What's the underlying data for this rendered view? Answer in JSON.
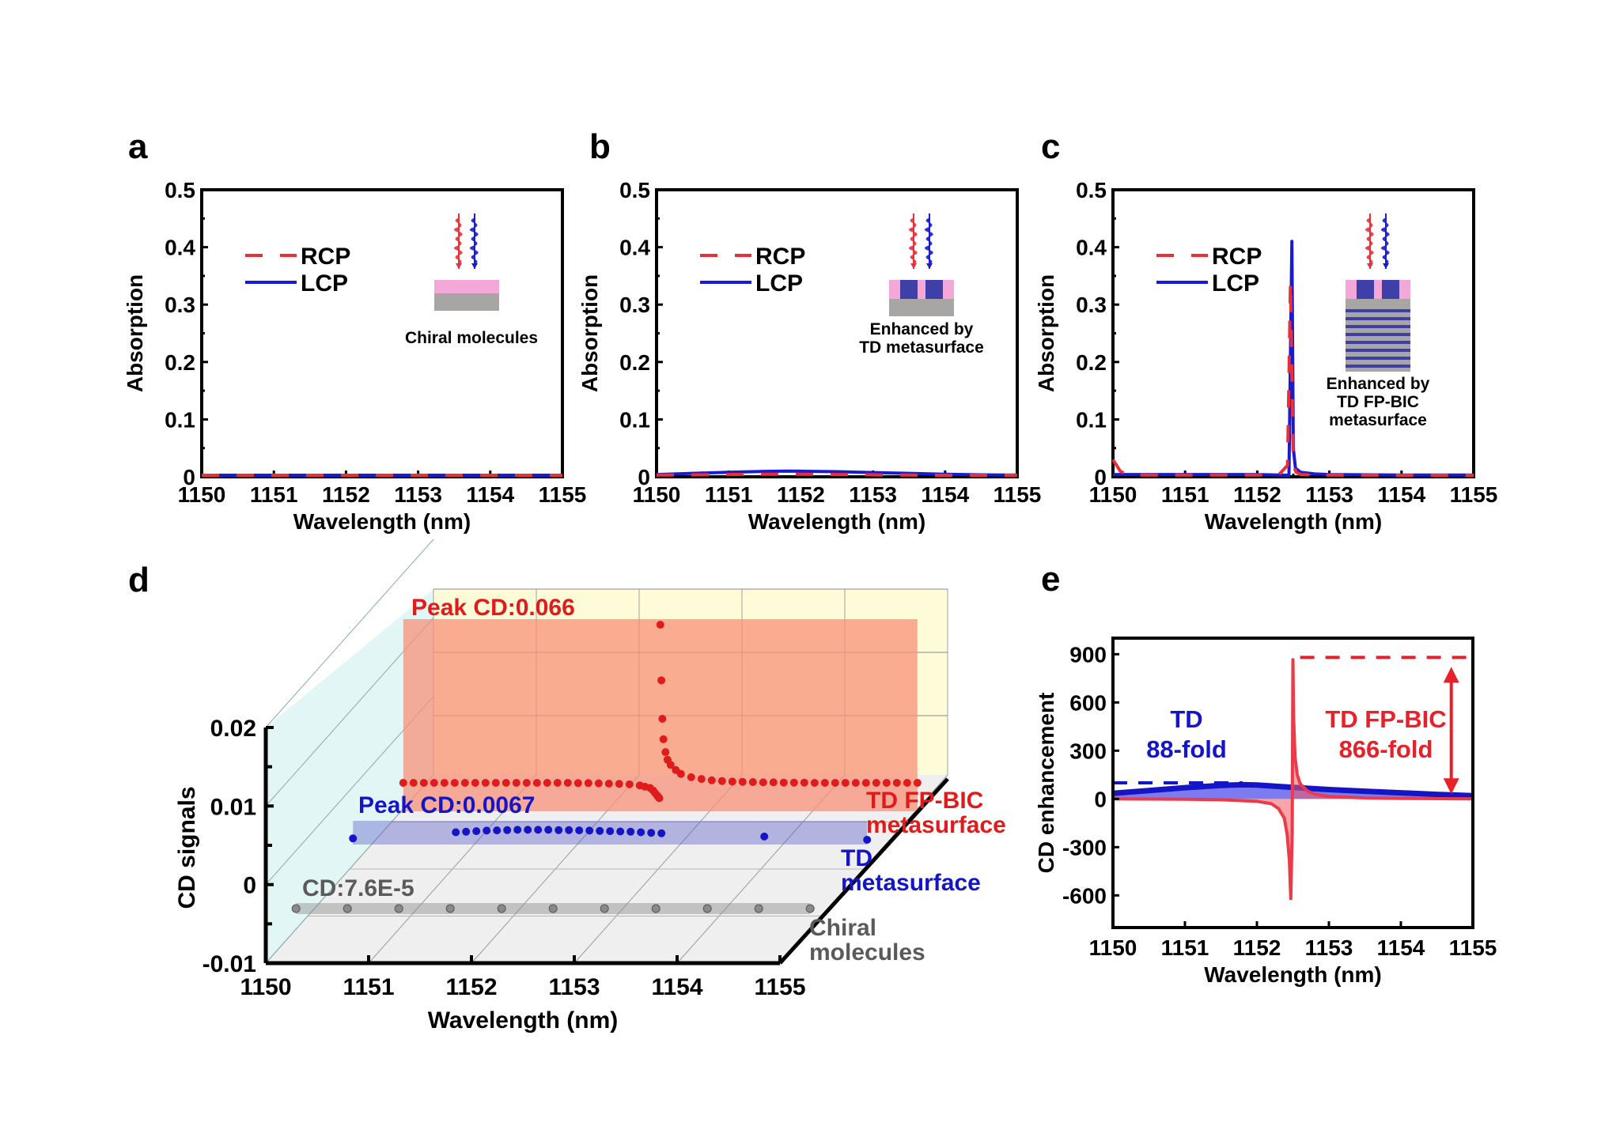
{
  "colors": {
    "rcp": "#e8303a",
    "lcp": "#1a1ad0",
    "axis": "#000000",
    "fpbic": "#e01b1b",
    "td": "#1515c8",
    "chiral": "#5a5a5a",
    "pink": "#f4a8d8",
    "substrate": "#a8a6a4",
    "meta_block": "#3f3fa8"
  },
  "chart_data": [
    {
      "id": "a",
      "type": "line",
      "panel_label": "a",
      "xlabel": "Wavelength (nm)",
      "ylabel": "Absorption",
      "xlim": [
        1150,
        1155
      ],
      "ylim": [
        0,
        0.5
      ],
      "xticks": [
        "1150",
        "1151",
        "1152",
        "1153",
        "1154",
        "1155"
      ],
      "yticks": [
        "0",
        "0.1",
        "0.2",
        "0.3",
        "0.4",
        "0.5"
      ],
      "legend": [
        "RCP",
        "LCP"
      ],
      "legend_position": "top-left",
      "inset_caption": [
        "Chiral molecules"
      ],
      "inset_type": "chiral",
      "series": [
        {
          "name": "RCP",
          "style": "dashed",
          "x": [
            1150,
            1151,
            1152,
            1153,
            1154,
            1155
          ],
          "y": [
            0.0005,
            0.0005,
            0.0005,
            0.0005,
            0.0005,
            0.0005
          ]
        },
        {
          "name": "LCP",
          "style": "solid",
          "x": [
            1150,
            1151,
            1152,
            1153,
            1154,
            1155
          ],
          "y": [
            0.0005,
            0.0005,
            0.0005,
            0.0005,
            0.0005,
            0.0005
          ]
        }
      ]
    },
    {
      "id": "b",
      "type": "line",
      "panel_label": "b",
      "xlabel": "Wavelength (nm)",
      "ylabel": "Absorption",
      "xlim": [
        1150,
        1155
      ],
      "ylim": [
        0,
        0.5
      ],
      "xticks": [
        "1150",
        "1151",
        "1152",
        "1153",
        "1154",
        "1155"
      ],
      "yticks": [
        "0",
        "0.1",
        "0.2",
        "0.3",
        "0.4",
        "0.5"
      ],
      "legend": [
        "RCP",
        "LCP"
      ],
      "legend_position": "top-left",
      "inset_caption": [
        "Enhanced by",
        "TD metasurface"
      ],
      "inset_type": "td",
      "series": [
        {
          "name": "RCP",
          "style": "dashed",
          "x": [
            1150,
            1150.5,
            1151,
            1151.5,
            1151.8,
            1152,
            1152.5,
            1153,
            1153.5,
            1154,
            1154.5,
            1155
          ],
          "y": [
            0.003,
            0.0035,
            0.004,
            0.0045,
            0.0045,
            0.0045,
            0.004,
            0.0035,
            0.003,
            0.0025,
            0.002,
            0.002
          ]
        },
        {
          "name": "LCP",
          "style": "solid",
          "x": [
            1150,
            1150.5,
            1151,
            1151.5,
            1151.8,
            1152,
            1152.5,
            1153,
            1153.5,
            1154,
            1154.5,
            1155
          ],
          "y": [
            0.004,
            0.006,
            0.008,
            0.0095,
            0.01,
            0.0098,
            0.009,
            0.0075,
            0.006,
            0.0045,
            0.0035,
            0.003
          ]
        }
      ]
    },
    {
      "id": "c",
      "type": "line",
      "panel_label": "c",
      "xlabel": "Wavelength (nm)",
      "ylabel": "Absorption",
      "xlim": [
        1150,
        1155
      ],
      "ylim": [
        0,
        0.5
      ],
      "xticks": [
        "1150",
        "1151",
        "1152",
        "1153",
        "1154",
        "1155"
      ],
      "yticks": [
        "0",
        "0.1",
        "0.2",
        "0.3",
        "0.4",
        "0.5"
      ],
      "legend": [
        "RCP",
        "LCP"
      ],
      "legend_position": "top-left",
      "inset_caption": [
        "Enhanced by",
        "TD FP-BIC",
        "metasurface"
      ],
      "inset_type": "fpbic",
      "series": [
        {
          "name": "RCP",
          "style": "dashed",
          "x": [
            1150,
            1150.1,
            1150.2,
            1151,
            1152,
            1152.3,
            1152.42,
            1152.46,
            1152.5,
            1152.54,
            1152.6,
            1152.8,
            1153,
            1154,
            1155
          ],
          "y": [
            0.03,
            0.01,
            0.003,
            0.003,
            0.003,
            0.004,
            0.02,
            0.34,
            0.02,
            0.008,
            0.004,
            0.003,
            0.003,
            0.002,
            0.002
          ]
        },
        {
          "name": "LCP",
          "style": "solid",
          "x": [
            1150,
            1150.1,
            1150.2,
            1151,
            1152,
            1152.3,
            1152.44,
            1152.48,
            1152.5,
            1152.53,
            1152.6,
            1152.8,
            1153,
            1154,
            1155
          ],
          "y": [
            0.004,
            0.004,
            0.004,
            0.004,
            0.004,
            0.003,
            0.0,
            0.41,
            0.05,
            0.015,
            0.008,
            0.005,
            0.004,
            0.003,
            0.003
          ]
        }
      ]
    },
    {
      "id": "d",
      "type": "scatter",
      "panel_label": "d",
      "projection": "3d",
      "xlabel": "Wavelength (nm)",
      "ylabel": "CD signals",
      "xlim": [
        1150,
        1155
      ],
      "ylim": [
        -0.01,
        0.02
      ],
      "xticks": [
        "1150",
        "1151",
        "1152",
        "1153",
        "1154",
        "1155"
      ],
      "yticks": [
        "-0.01",
        "0",
        "0.01",
        "0.02"
      ],
      "annotations": [
        "Peak CD:0.066",
        "Peak CD:0.0067",
        "CD:7.6E-5"
      ],
      "series": [
        {
          "name": "TD FP-BIC metasurface",
          "label_lines": [
            "TD FP-BIC",
            "metasurface"
          ],
          "peak_label": "Peak CD:0.066",
          "x": [
            1150.0,
            1150.1,
            1150.2,
            1150.3,
            1150.4,
            1150.5,
            1150.6,
            1150.7,
            1150.8,
            1150.9,
            1151.0,
            1151.1,
            1151.2,
            1151.3,
            1151.4,
            1151.5,
            1151.6,
            1151.7,
            1151.8,
            1151.9,
            1152.0,
            1152.1,
            1152.2,
            1152.3,
            1152.35,
            1152.4,
            1152.43,
            1152.45,
            1152.47,
            1152.48,
            1152.49,
            1152.5,
            1152.51,
            1152.52,
            1152.53,
            1152.55,
            1152.57,
            1152.6,
            1152.65,
            1152.7,
            1152.8,
            1152.9,
            1153.0,
            1153.1,
            1153.2,
            1153.3,
            1153.4,
            1153.5,
            1153.6,
            1153.7,
            1153.8,
            1153.9,
            1154.0,
            1154.1,
            1154.2,
            1154.3,
            1154.4,
            1154.5,
            1154.6,
            1154.7,
            1154.8,
            1154.9,
            1155.0
          ],
          "y": [
            0.0,
            0.0,
            0.0,
            0.0,
            0.0,
            0.0,
            0.0,
            0.0,
            0.0,
            0.0,
            0.0,
            0.0,
            0.0,
            0.0,
            0.0,
            0.0,
            0.0,
            -0.0001,
            -0.0001,
            -0.0002,
            -0.0003,
            -0.0004,
            -0.0006,
            -0.001,
            -0.0015,
            -0.002,
            -0.003,
            -0.004,
            -0.005,
            -0.0055,
            -0.006,
            0.066,
            0.04,
            0.025,
            0.017,
            0.012,
            0.009,
            0.007,
            0.005,
            0.0035,
            0.0022,
            0.0015,
            0.001,
            0.0007,
            0.0005,
            0.0004,
            0.0003,
            0.0002,
            0.0002,
            0.0001,
            0.0001,
            0.0001,
            0.0,
            0.0,
            0.0,
            0.0,
            0.0,
            0.0,
            0.0,
            0.0,
            0.0,
            0.0,
            0.0
          ]
        },
        {
          "name": "TD metasurface",
          "label_lines": [
            "TD",
            "metasurface"
          ],
          "peak_label": "Peak CD:0.0067",
          "x": [
            1150.0,
            1151.0,
            1151.1,
            1151.2,
            1151.3,
            1151.4,
            1151.5,
            1151.6,
            1151.7,
            1151.8,
            1151.9,
            1152.0,
            1152.1,
            1152.2,
            1152.3,
            1152.4,
            1152.5,
            1152.6,
            1152.7,
            1152.8,
            1152.9,
            1153.0,
            1154.0,
            1155.0
          ],
          "y": [
            0.0035,
            0.0058,
            0.006,
            0.0062,
            0.0064,
            0.0065,
            0.0066,
            0.0067,
            0.0067,
            0.0067,
            0.0067,
            0.0066,
            0.0066,
            0.0065,
            0.0064,
            0.0063,
            0.0062,
            0.0061,
            0.006,
            0.0058,
            0.0056,
            0.0054,
            0.0042,
            0.003
          ]
        },
        {
          "name": "Chiral molecules",
          "label_lines": [
            "Chiral",
            "molecules"
          ],
          "peak_label": "CD:7.6E-5",
          "x": [
            1150.0,
            1150.5,
            1151.0,
            1151.5,
            1152.0,
            1152.5,
            1153.0,
            1153.5,
            1154.0,
            1154.5,
            1155.0
          ],
          "y": [
            7.6e-05,
            7.6e-05,
            7.6e-05,
            7.6e-05,
            7.6e-05,
            7.6e-05,
            7.6e-05,
            7.6e-05,
            7.6e-05,
            7.6e-05,
            7.6e-05
          ]
        }
      ]
    },
    {
      "id": "e",
      "type": "area",
      "panel_label": "e",
      "xlabel": "Wavelength (nm)",
      "ylabel": "CD enhancement",
      "xlim": [
        1150,
        1155
      ],
      "ylim": [
        -800,
        1000
      ],
      "xticks": [
        "1150",
        "1151",
        "1152",
        "1153",
        "1154",
        "1155"
      ],
      "yticks": [
        "-600",
        "-300",
        "0",
        "300",
        "600",
        "900"
      ],
      "annotations": [
        {
          "lines": [
            "TD",
            "88-fold"
          ],
          "series": "TD"
        },
        {
          "lines": [
            "TD FP-BIC",
            "866-fold"
          ],
          "series": "TD FP-BIC"
        }
      ],
      "reference_lines": [
        {
          "series": "TD",
          "y": 100,
          "x_range": [
            1150,
            1151.8
          ]
        },
        {
          "series": "TD FP-BIC",
          "y": 880,
          "x_range": [
            1152.6,
            1155
          ]
        }
      ],
      "arrow": {
        "x": 1154.7,
        "y_range": [
          10,
          880
        ]
      },
      "series": [
        {
          "name": "TD",
          "x": [
            1150,
            1150.5,
            1151,
            1151.5,
            1151.8,
            1152,
            1152.5,
            1153,
            1153.5,
            1154,
            1154.5,
            1155
          ],
          "y": [
            35,
            52,
            70,
            84,
            88,
            86,
            72,
            58,
            48,
            38,
            28,
            20
          ]
        },
        {
          "name": "TD FP-BIC",
          "x": [
            1150,
            1151,
            1151.5,
            1152,
            1152.2,
            1152.3,
            1152.38,
            1152.42,
            1152.45,
            1152.47,
            1152.49,
            1152.5,
            1152.51,
            1152.53,
            1152.56,
            1152.6,
            1152.7,
            1152.8,
            1153,
            1153.5,
            1154,
            1155
          ],
          "y": [
            0,
            -2,
            -5,
            -15,
            -30,
            -60,
            -120,
            -220,
            -380,
            -620,
            -200,
            866,
            500,
            260,
            150,
            95,
            50,
            30,
            15,
            6,
            3,
            0
          ]
        }
      ]
    }
  ]
}
